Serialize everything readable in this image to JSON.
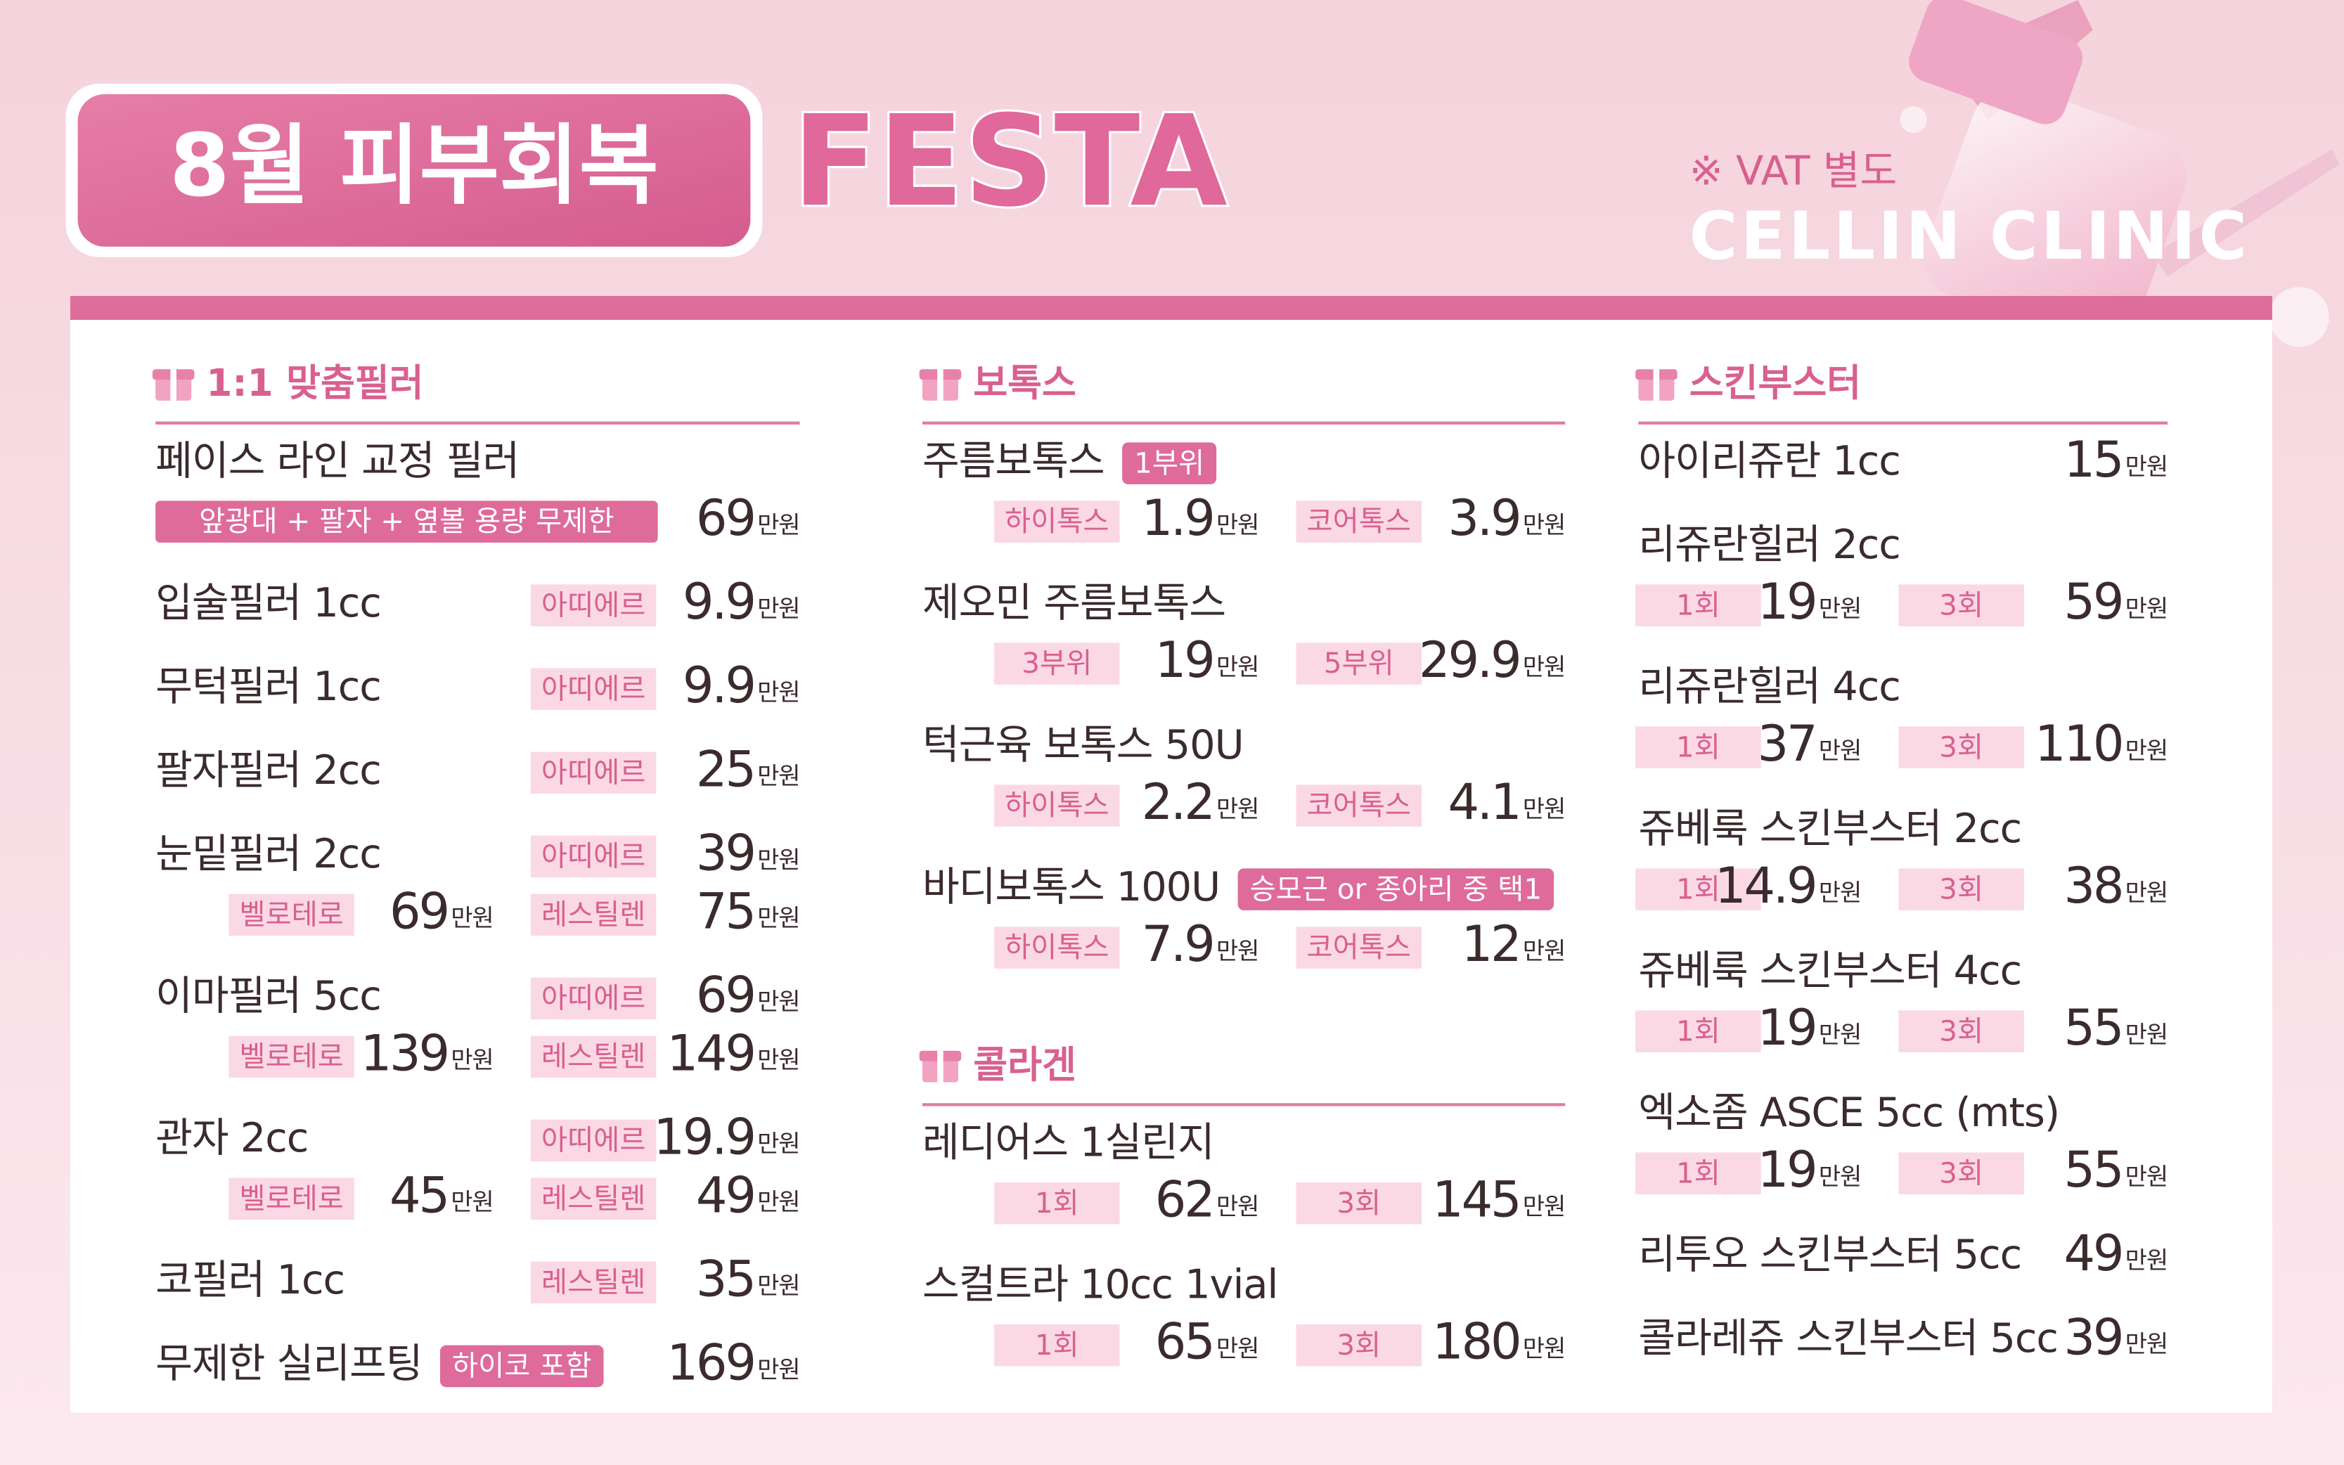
{
  "header": {
    "title_box": "8월 피부회복",
    "title": "FESTA",
    "note": "※ VAT 별도",
    "brand": "CELLIN CLINIC"
  },
  "unit": "만원",
  "columns": [
    {
      "sections": [
        {
          "title": "1:1 맞춤필러",
          "items": [
            {
              "name": "페이스 라인 교정 필러",
              "sub": [
                {
                  "note": "앞광대 + 팔자 + 옆볼 용량 무제한",
                  "price": 69
                }
              ]
            },
            {
              "name": "입술필러 1cc",
              "inline": [
                {
                  "label": "아띠에르",
                  "price": 9.9
                }
              ]
            },
            {
              "name": "무턱필러 1cc",
              "inline": [
                {
                  "label": "아띠에르",
                  "price": 9.9
                }
              ]
            },
            {
              "name": "팔자필러 2cc",
              "inline": [
                {
                  "label": "아띠에르",
                  "price": 25
                }
              ]
            },
            {
              "name": "눈밑필러 2cc",
              "inline": [
                {
                  "label": "아띠에르",
                  "price": 39
                }
              ],
              "sub": [
                {
                  "label": "벨로테로",
                  "price": 69
                },
                {
                  "label": "레스틸렌",
                  "price": 75
                }
              ]
            },
            {
              "name": "이마필러 5cc",
              "inline": [
                {
                  "label": "아띠에르",
                  "price": 69
                }
              ],
              "sub": [
                {
                  "label": "벨로테로",
                  "price": 139
                },
                {
                  "label": "레스틸렌",
                  "price": 149
                }
              ]
            },
            {
              "name": "관자 2cc",
              "inline": [
                {
                  "label": "아띠에르",
                  "price": 19.9
                }
              ],
              "sub": [
                {
                  "label": "벨로테로",
                  "price": 45
                },
                {
                  "label": "레스틸렌",
                  "price": 49
                }
              ]
            },
            {
              "name": "코필러 1cc",
              "inline": [
                {
                  "label": "레스틸렌",
                  "price": 35
                }
              ]
            },
            {
              "name": "무제한 실리프팅",
              "badge": "하이코 포함",
              "inline": [
                {
                  "price": 169
                }
              ]
            }
          ]
        }
      ]
    },
    {
      "sections": [
        {
          "title": "보톡스",
          "items": [
            {
              "name": "주름보톡스",
              "badge": "1부위",
              "sub": [
                {
                  "label": "하이톡스",
                  "price": 1.9
                },
                {
                  "label": "코어톡스",
                  "price": 3.9
                }
              ]
            },
            {
              "name": "제오민 주름보톡스",
              "sub": [
                {
                  "label": "3부위",
                  "price": 19
                },
                {
                  "label": "5부위",
                  "price": 29.9
                }
              ]
            },
            {
              "name": "턱근육 보톡스 50U",
              "sub": [
                {
                  "label": "하이톡스",
                  "price": 2.2
                },
                {
                  "label": "코어톡스",
                  "price": 4.1
                }
              ]
            },
            {
              "name": "바디보톡스 100U",
              "badge": "승모근 or 종아리 중 택1",
              "sub": [
                {
                  "label": "하이톡스",
                  "price": 7.9
                },
                {
                  "label": "코어톡스",
                  "price": 12
                }
              ]
            }
          ]
        },
        {
          "title": "콜라겐",
          "items": [
            {
              "name": "레디어스 1실린지",
              "sub": [
                {
                  "label": "1회",
                  "price": 62
                },
                {
                  "label": "3회",
                  "price": 145
                }
              ]
            },
            {
              "name": "스컬트라 10cc 1vial",
              "sub": [
                {
                  "label": "1회",
                  "price": 65
                },
                {
                  "label": "3회",
                  "price": 180
                }
              ]
            }
          ]
        }
      ]
    },
    {
      "sections": [
        {
          "title": "스킨부스터",
          "items": [
            {
              "name": "아이리쥬란 1cc",
              "inline": [
                {
                  "price": 15
                }
              ]
            },
            {
              "name": "리쥬란힐러 2cc",
              "sub": [
                {
                  "label": "1회",
                  "price": 19
                },
                {
                  "label": "3회",
                  "price": 59
                }
              ]
            },
            {
              "name": "리쥬란힐러 4cc",
              "sub": [
                {
                  "label": "1회",
                  "price": 37
                },
                {
                  "label": "3회",
                  "price": 110
                }
              ]
            },
            {
              "name": "쥬베룩 스킨부스터 2cc",
              "sub": [
                {
                  "label": "1회",
                  "price": 14.9
                },
                {
                  "label": "3회",
                  "price": 38
                }
              ]
            },
            {
              "name": "쥬베룩 스킨부스터 4cc",
              "sub": [
                {
                  "label": "1회",
                  "price": 19
                },
                {
                  "label": "3회",
                  "price": 55
                }
              ]
            },
            {
              "name": "엑소좀 ASCE 5cc (mts)",
              "sub": [
                {
                  "label": "1회",
                  "price": 19
                },
                {
                  "label": "3회",
                  "price": 55
                }
              ]
            },
            {
              "name": "리투오 스킨부스터 5cc",
              "inline": [
                {
                  "price": 49
                }
              ]
            },
            {
              "name": "콜라레쥬 스킨부스터 5cc",
              "inline": [
                {
                  "price": 39
                }
              ]
            }
          ]
        }
      ]
    }
  ]
}
